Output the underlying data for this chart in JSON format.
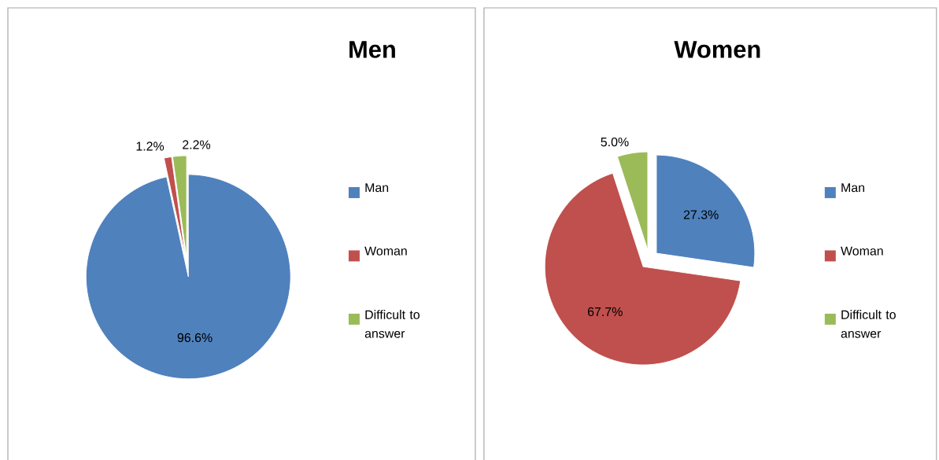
{
  "chart_data": [
    {
      "type": "pie",
      "title": "Men",
      "categories": [
        "Man",
        "Woman",
        "Difficult to answer"
      ],
      "values": [
        96.6,
        1.2,
        2.2
      ],
      "colors": [
        "#4f81bd",
        "#c0504d",
        "#9bbb59"
      ],
      "value_labels": [
        "96.6%",
        "1.2%",
        "2.2%"
      ],
      "legend": "right"
    },
    {
      "type": "pie",
      "title": "Women",
      "categories": [
        "Man",
        "Woman",
        "Difficult to answer"
      ],
      "values": [
        27.3,
        67.7,
        5.0
      ],
      "colors": [
        "#4f81bd",
        "#c0504d",
        "#9bbb59"
      ],
      "value_labels": [
        "27.3%",
        "67.7%",
        "5.0%"
      ],
      "legend": "right"
    }
  ]
}
